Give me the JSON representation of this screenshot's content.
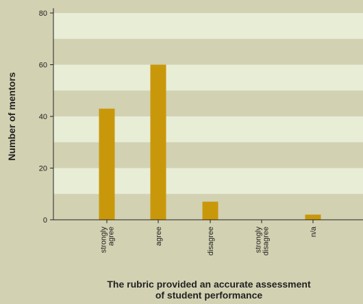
{
  "chart_data": {
    "type": "bar",
    "categories": [
      [
        "strongly",
        "agree"
      ],
      [
        "agree"
      ],
      [
        "disagree"
      ],
      [
        "strongly",
        "disagree"
      ],
      [
        "n/a"
      ]
    ],
    "values": [
      43,
      60,
      7,
      0,
      2
    ],
    "xlabel": [
      "The rubric provided an accurate assessment",
      "of student performance"
    ],
    "ylabel": "Number of mentors",
    "ylim": [
      0,
      80
    ],
    "yticks": [
      0,
      20,
      40,
      60,
      80
    ],
    "grid": "alternating horizontal bands",
    "colors": {
      "background": "#d2d1b2",
      "band_light": "#e8edd6",
      "band_dark": "#d2d1b2",
      "bar": "#c9980a",
      "axis": "#222222"
    }
  }
}
